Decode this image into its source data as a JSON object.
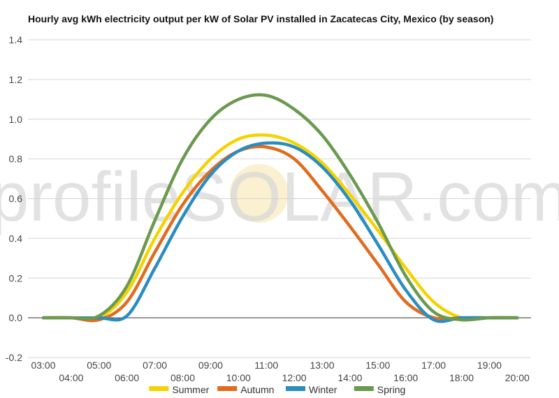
{
  "chart_data": {
    "type": "line",
    "title": "Hourly avg kWh electricity output per kW of Solar PV installed in Zacatecas City, Mexico (by season)",
    "watermark": "profileSOLAR.com",
    "xlabel": "",
    "ylabel": "",
    "ylim": [
      -0.2,
      1.4
    ],
    "yticks": [
      -0.2,
      0.0,
      0.2,
      0.4,
      0.6,
      0.8,
      1.0,
      1.2,
      1.4
    ],
    "ytick_labels": [
      "-0.2",
      "0.0",
      "0.2",
      "0.4",
      "0.6",
      "0.8",
      "1.0",
      "1.2",
      "1.4"
    ],
    "x": [
      "03:00",
      "04:00",
      "05:00",
      "06:00",
      "07:00",
      "08:00",
      "09:00",
      "10:00",
      "11:00",
      "12:00",
      "13:00",
      "14:00",
      "15:00",
      "16:00",
      "17:00",
      "18:00",
      "19:00",
      "20:00"
    ],
    "grid": true,
    "legend_position": "bottom",
    "series": [
      {
        "name": "Summer",
        "color": "#f5d300",
        "values": [
          0.0,
          0.0,
          0.0,
          0.13,
          0.4,
          0.63,
          0.8,
          0.9,
          0.92,
          0.88,
          0.78,
          0.62,
          0.44,
          0.25,
          0.08,
          0.0,
          0.0,
          0.0
        ]
      },
      {
        "name": "Autumn",
        "color": "#e06c1f",
        "values": [
          0.0,
          0.0,
          -0.01,
          0.08,
          0.33,
          0.57,
          0.74,
          0.84,
          0.86,
          0.8,
          0.64,
          0.46,
          0.27,
          0.08,
          0.0,
          0.0,
          0.0,
          0.0
        ]
      },
      {
        "name": "Winter",
        "color": "#2a8dc0",
        "values": [
          0.0,
          0.0,
          0.0,
          0.01,
          0.25,
          0.51,
          0.72,
          0.84,
          0.88,
          0.86,
          0.76,
          0.59,
          0.37,
          0.14,
          -0.01,
          0.0,
          0.0,
          0.0
        ]
      },
      {
        "name": "Spring",
        "color": "#6b9a4f",
        "values": [
          0.0,
          0.0,
          0.01,
          0.16,
          0.49,
          0.8,
          1.0,
          1.1,
          1.12,
          1.05,
          0.92,
          0.72,
          0.48,
          0.21,
          0.03,
          -0.01,
          0.0,
          0.0
        ]
      }
    ]
  }
}
